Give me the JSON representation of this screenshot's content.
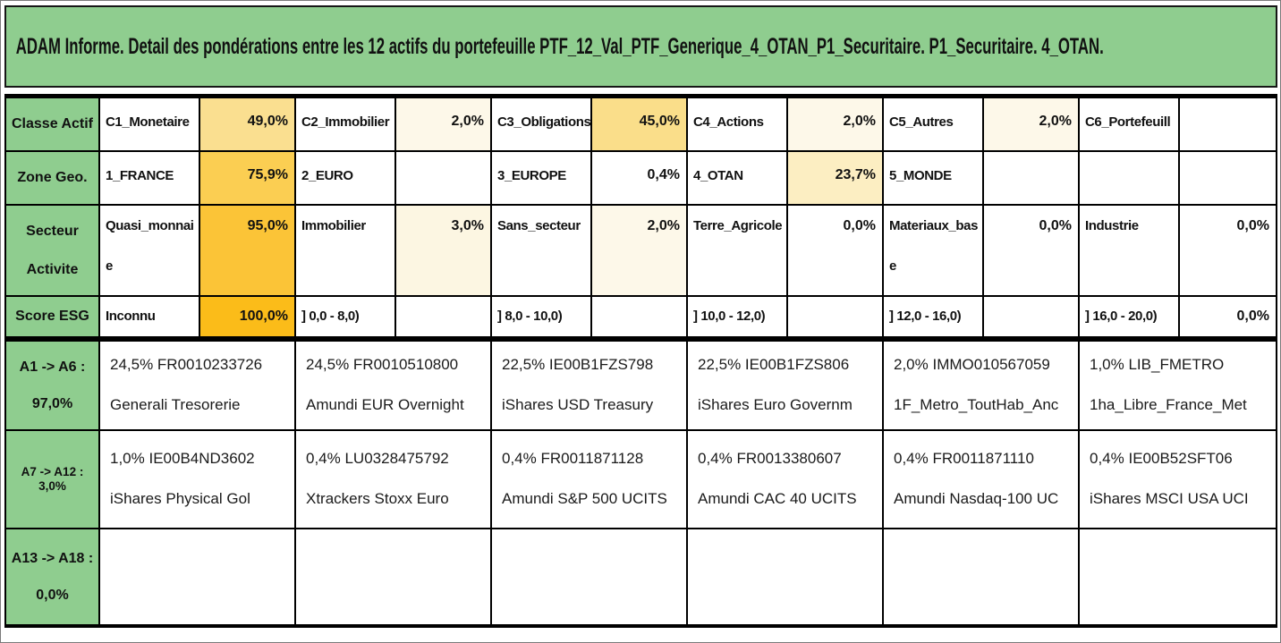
{
  "title": "ADAM Informe. Detail des pondérations entre les 12 actifs du portefeuille PTF_12_Val_PTF_Generique_4_OTAN_P1_Securitaire. P1_Securitaire. 4_OTAN.",
  "colors": {
    "band_green": "#8FCD8F",
    "highlight_full": "#FBBC19",
    "highlight_strong": "#FBC437",
    "highlight_mid": "#FBCE52",
    "highlight_gold": "#FADF90",
    "highlight_pale": "#FCEEC2",
    "highlight_ivory": "#FDF8E9"
  },
  "criteria_rows": [
    {
      "label": "Classe Actif",
      "pairs": [
        {
          "name": "C1_Monetaire",
          "value": "49,0%",
          "bg": "#FADF90"
        },
        {
          "name": "C2_Immobilier",
          "value": "2,0%",
          "bg": "#FDF8E9"
        },
        {
          "name": "C3_Obligations",
          "value": "45,0%",
          "bg": "#FADE8A"
        },
        {
          "name": "C4_Actions",
          "value": "2,0%",
          "bg": "#FDF8E9"
        },
        {
          "name": "C5_Autres",
          "value": "2,0%",
          "bg": "#FDF8E9"
        },
        {
          "name": "C6_Portefeuill",
          "value": "",
          "bg": "#FFFFFF"
        }
      ]
    },
    {
      "label": "Zone Geo.",
      "pairs": [
        {
          "name": "1_FRANCE",
          "value": "75,9%",
          "bg": "#FBCE52"
        },
        {
          "name": "2_EURO",
          "value": "",
          "bg": "#FFFFFF"
        },
        {
          "name": "3_EUROPE",
          "value": "0,4%",
          "bg": "#FFFFFF"
        },
        {
          "name": "4_OTAN",
          "value": "23,7%",
          "bg": "#FCEEC2"
        },
        {
          "name": "5_MONDE",
          "value": "",
          "bg": "#FFFFFF"
        },
        {
          "name": "",
          "value": "",
          "bg": "#FFFFFF"
        }
      ]
    },
    {
      "label": "Secteur Activite",
      "pairs": [
        {
          "name": "Quasi_monnaie",
          "value": "95,0%",
          "bg": "#FBC437"
        },
        {
          "name": "Immobilier",
          "value": "3,0%",
          "bg": "#FCF6E2"
        },
        {
          "name": "Sans_secteur",
          "value": "2,0%",
          "bg": "#FDF8E9"
        },
        {
          "name": "Terre_Agricole",
          "value": "0,0%",
          "bg": "#FFFFFF"
        },
        {
          "name": "Materiaux_base",
          "value": "0,0%",
          "bg": "#FFFFFF"
        },
        {
          "name": "Industrie",
          "value": "0,0%",
          "bg": "#FFFFFF"
        }
      ]
    },
    {
      "label": "Score ESG",
      "pairs": [
        {
          "name": "Inconnu",
          "value": "100,0%",
          "bg": "#FBBC19"
        },
        {
          "name": "] 0,0 - 8,0)",
          "value": "",
          "bg": "#FFFFFF"
        },
        {
          "name": "] 8,0 - 10,0)",
          "value": "",
          "bg": "#FFFFFF"
        },
        {
          "name": "] 10,0 - 12,0)",
          "value": "",
          "bg": "#FFFFFF"
        },
        {
          "name": "] 12,0 - 16,0)",
          "value": "",
          "bg": "#FFFFFF"
        },
        {
          "name": "] 16,0 - 20,0)",
          "value": "0,0%",
          "bg": "#FFFFFF"
        }
      ]
    }
  ],
  "asset_rows": [
    {
      "label1": "A1 -> A6 :",
      "label2": "97,0%",
      "cells": [
        {
          "line1": "24,5% FR0010233726",
          "line2": "Generali Tresorerie"
        },
        {
          "line1": "24,5% FR0010510800",
          "line2": "Amundi EUR Overnight"
        },
        {
          "line1": "22,5% IE00B1FZS798",
          "line2": "iShares USD Treasury"
        },
        {
          "line1": "22,5% IE00B1FZS806",
          "line2": "iShares Euro Governm"
        },
        {
          "line1": "2,0% IMMO010567059",
          "line2": "1F_Metro_ToutHab_Anc"
        },
        {
          "line1": "1,0% LIB_FMETRO",
          "line2": "1ha_Libre_France_Met"
        }
      ]
    },
    {
      "label1": "A7 -> A12 : 3,0%",
      "label2": "",
      "cells": [
        {
          "line1": "1,0% IE00B4ND3602",
          "line2": "iShares Physical Gol"
        },
        {
          "line1": "0,4% LU0328475792",
          "line2": "Xtrackers Stoxx Euro"
        },
        {
          "line1": "0,4% FR0011871128",
          "line2": "Amundi S&P 500 UCITS"
        },
        {
          "line1": "0,4% FR0013380607",
          "line2": "Amundi CAC 40 UCITS"
        },
        {
          "line1": "0,4% FR0011871110",
          "line2": "Amundi Nasdaq-100 UC"
        },
        {
          "line1": "0,4% IE00B52SFT06",
          "line2": "iShares MSCI USA UCI"
        }
      ]
    },
    {
      "label1": "A13 -> A18 :",
      "label2": "0,0%",
      "cells": [
        {
          "line1": "",
          "line2": ""
        },
        {
          "line1": "",
          "line2": ""
        },
        {
          "line1": "",
          "line2": ""
        },
        {
          "line1": "",
          "line2": ""
        },
        {
          "line1": "",
          "line2": ""
        },
        {
          "line1": "",
          "line2": ""
        }
      ]
    }
  ]
}
